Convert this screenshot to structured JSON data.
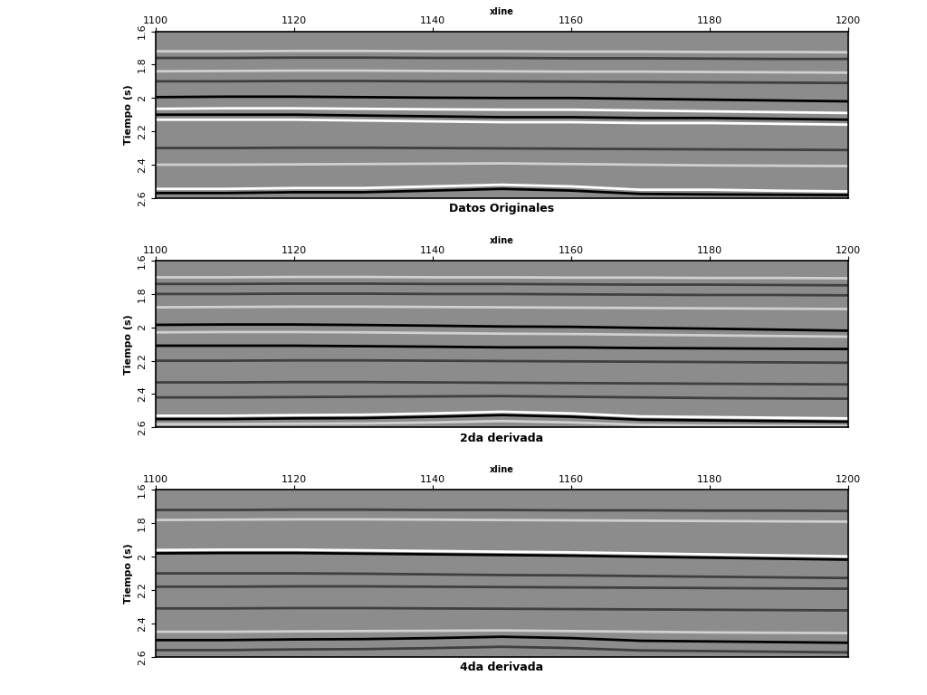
{
  "chart_data": [
    {
      "type": "line",
      "title": "Datos Originales",
      "x_label": "xline",
      "y_label": "Tiempo (s)",
      "x": [
        1100,
        1110,
        1120,
        1130,
        1140,
        1150,
        1160,
        1170,
        1180,
        1190,
        1200
      ],
      "xlim": [
        1100,
        1200
      ],
      "xticks": [
        1100,
        1120,
        1140,
        1160,
        1180,
        1200
      ],
      "ylim": [
        2.6,
        1.6
      ],
      "yticks": [
        1.6,
        1.8,
        2,
        2.2,
        2.4,
        2.6
      ],
      "series": [
        {
          "color": "#d0d0d0",
          "values": [
            1.72,
            1.72,
            1.718,
            1.718,
            1.72,
            1.72,
            1.722,
            1.722,
            1.724,
            1.724,
            1.726
          ]
        },
        {
          "color": "#404040",
          "values": [
            1.76,
            1.76,
            1.758,
            1.758,
            1.76,
            1.76,
            1.762,
            1.762,
            1.764,
            1.766,
            1.766
          ]
        },
        {
          "color": "#d0d0d0",
          "values": [
            1.84,
            1.838,
            1.836,
            1.836,
            1.838,
            1.84,
            1.842,
            1.842,
            1.844,
            1.846,
            1.848
          ]
        },
        {
          "color": "#404040",
          "values": [
            1.9,
            1.9,
            1.898,
            1.898,
            1.9,
            1.9,
            1.902,
            1.904,
            1.906,
            1.908,
            1.91
          ]
        },
        {
          "color": "#000000",
          "values": [
            1.995,
            1.992,
            1.992,
            1.995,
            1.998,
            2.0,
            2.0,
            2.005,
            2.01,
            2.015,
            2.02
          ]
        },
        {
          "color": "#ffffff",
          "values": [
            2.065,
            2.062,
            2.062,
            2.065,
            2.068,
            2.07,
            2.07,
            2.075,
            2.08,
            2.085,
            2.09
          ]
        },
        {
          "color": "#000000",
          "values": [
            2.1,
            2.1,
            2.1,
            2.105,
            2.11,
            2.115,
            2.115,
            2.12,
            2.12,
            2.125,
            2.13
          ]
        },
        {
          "color": "#ffffff",
          "values": [
            2.13,
            2.13,
            2.13,
            2.135,
            2.14,
            2.145,
            2.145,
            2.15,
            2.15,
            2.155,
            2.16
          ]
        },
        {
          "color": "#404040",
          "values": [
            2.3,
            2.3,
            2.298,
            2.298,
            2.3,
            2.302,
            2.304,
            2.306,
            2.308,
            2.31,
            2.312
          ]
        },
        {
          "color": "#d0d0d0",
          "values": [
            2.4,
            2.4,
            2.398,
            2.396,
            2.394,
            2.392,
            2.396,
            2.4,
            2.404,
            2.406,
            2.408
          ]
        },
        {
          "color": "#ffffff",
          "values": [
            2.545,
            2.545,
            2.54,
            2.54,
            2.53,
            2.52,
            2.53,
            2.55,
            2.55,
            2.556,
            2.56
          ]
        },
        {
          "color": "#000000",
          "values": [
            2.57,
            2.57,
            2.565,
            2.565,
            2.555,
            2.545,
            2.555,
            2.575,
            2.578,
            2.58,
            2.582
          ]
        }
      ]
    },
    {
      "type": "line",
      "title": "2da derivada",
      "x_label": "xline",
      "y_label": "Tiempo (s)",
      "x": [
        1100,
        1110,
        1120,
        1130,
        1140,
        1150,
        1160,
        1170,
        1180,
        1190,
        1200
      ],
      "xlim": [
        1100,
        1200
      ],
      "xticks": [
        1100,
        1120,
        1140,
        1160,
        1180,
        1200
      ],
      "ylim": [
        2.6,
        1.6
      ],
      "yticks": [
        1.6,
        1.8,
        2,
        2.2,
        2.4,
        2.6
      ],
      "series": [
        {
          "color": "#d0d0d0",
          "values": [
            1.7,
            1.7,
            1.698,
            1.698,
            1.7,
            1.7,
            1.702,
            1.702,
            1.704,
            1.704,
            1.706
          ]
        },
        {
          "color": "#404040",
          "values": [
            1.74,
            1.74,
            1.738,
            1.738,
            1.74,
            1.74,
            1.742,
            1.744,
            1.744,
            1.746,
            1.748
          ]
        },
        {
          "color": "#404040",
          "values": [
            1.8,
            1.8,
            1.798,
            1.798,
            1.8,
            1.8,
            1.802,
            1.804,
            1.806,
            1.806,
            1.808
          ]
        },
        {
          "color": "#d0d0d0",
          "values": [
            1.88,
            1.878,
            1.876,
            1.876,
            1.878,
            1.88,
            1.882,
            1.884,
            1.886,
            1.888,
            1.89
          ]
        },
        {
          "color": "#000000",
          "values": [
            1.985,
            1.983,
            1.983,
            1.986,
            1.99,
            1.995,
            1.997,
            2.003,
            2.008,
            2.014,
            2.02
          ]
        },
        {
          "color": "#d0d0d0",
          "values": [
            2.03,
            2.028,
            2.028,
            2.03,
            2.034,
            2.038,
            2.04,
            2.044,
            2.048,
            2.052,
            2.056
          ]
        },
        {
          "color": "#000000",
          "values": [
            2.11,
            2.11,
            2.11,
            2.113,
            2.116,
            2.12,
            2.12,
            2.124,
            2.126,
            2.128,
            2.13
          ]
        },
        {
          "color": "#404040",
          "values": [
            2.2,
            2.2,
            2.198,
            2.198,
            2.2,
            2.202,
            2.204,
            2.206,
            2.208,
            2.21,
            2.212
          ]
        },
        {
          "color": "#404040",
          "values": [
            2.33,
            2.33,
            2.328,
            2.328,
            2.33,
            2.332,
            2.334,
            2.336,
            2.338,
            2.34,
            2.342
          ]
        },
        {
          "color": "#404040",
          "values": [
            2.42,
            2.42,
            2.418,
            2.416,
            2.414,
            2.412,
            2.416,
            2.42,
            2.424,
            2.426,
            2.428
          ]
        },
        {
          "color": "#ffffff",
          "values": [
            2.53,
            2.53,
            2.526,
            2.524,
            2.516,
            2.506,
            2.516,
            2.534,
            2.538,
            2.542,
            2.546
          ]
        },
        {
          "color": "#000000",
          "values": [
            2.55,
            2.55,
            2.546,
            2.544,
            2.536,
            2.526,
            2.536,
            2.554,
            2.558,
            2.562,
            2.566
          ]
        },
        {
          "color": "#d0d0d0",
          "values": [
            2.58,
            2.58,
            2.578,
            2.576,
            2.57,
            2.562,
            2.57,
            2.584,
            2.588,
            2.59,
            2.592
          ]
        }
      ]
    },
    {
      "type": "line",
      "title": "4da derivada",
      "x_label": "xline",
      "y_label": "Tiempo (s)",
      "x": [
        1100,
        1110,
        1120,
        1130,
        1140,
        1150,
        1160,
        1170,
        1180,
        1190,
        1200
      ],
      "xlim": [
        1100,
        1200
      ],
      "xticks": [
        1100,
        1120,
        1140,
        1160,
        1180,
        1200
      ],
      "ylim": [
        2.6,
        1.6
      ],
      "yticks": [
        1.6,
        1.8,
        2,
        2.2,
        2.4,
        2.6
      ],
      "series": [
        {
          "color": "#404040",
          "values": [
            1.72,
            1.72,
            1.718,
            1.718,
            1.72,
            1.72,
            1.722,
            1.722,
            1.724,
            1.724,
            1.726
          ]
        },
        {
          "color": "#d0d0d0",
          "values": [
            1.78,
            1.778,
            1.776,
            1.776,
            1.778,
            1.78,
            1.782,
            1.784,
            1.786,
            1.788,
            1.79
          ]
        },
        {
          "color": "#ffffff",
          "values": [
            1.96,
            1.958,
            1.958,
            1.962,
            1.966,
            1.97,
            1.974,
            1.98,
            1.986,
            1.992,
            1.998
          ]
        },
        {
          "color": "#000000",
          "values": [
            1.98,
            1.978,
            1.978,
            1.982,
            1.986,
            1.99,
            1.994,
            2.0,
            2.006,
            2.012,
            2.018
          ]
        },
        {
          "color": "#404040",
          "values": [
            2.1,
            2.1,
            2.1,
            2.102,
            2.106,
            2.11,
            2.112,
            2.116,
            2.12,
            2.124,
            2.128
          ]
        },
        {
          "color": "#404040",
          "values": [
            2.18,
            2.18,
            2.178,
            2.178,
            2.18,
            2.182,
            2.184,
            2.186,
            2.188,
            2.19,
            2.192
          ]
        },
        {
          "color": "#404040",
          "values": [
            2.31,
            2.31,
            2.308,
            2.308,
            2.31,
            2.312,
            2.314,
            2.316,
            2.318,
            2.32,
            2.322
          ]
        },
        {
          "color": "#d0d0d0",
          "values": [
            2.45,
            2.45,
            2.448,
            2.446,
            2.444,
            2.442,
            2.446,
            2.45,
            2.454,
            2.456,
            2.458
          ]
        },
        {
          "color": "#000000",
          "values": [
            2.5,
            2.5,
            2.496,
            2.494,
            2.488,
            2.48,
            2.488,
            2.504,
            2.508,
            2.512,
            2.516
          ]
        },
        {
          "color": "#404040",
          "values": [
            2.56,
            2.56,
            2.556,
            2.554,
            2.548,
            2.54,
            2.548,
            2.562,
            2.566,
            2.57,
            2.574
          ]
        }
      ]
    }
  ]
}
